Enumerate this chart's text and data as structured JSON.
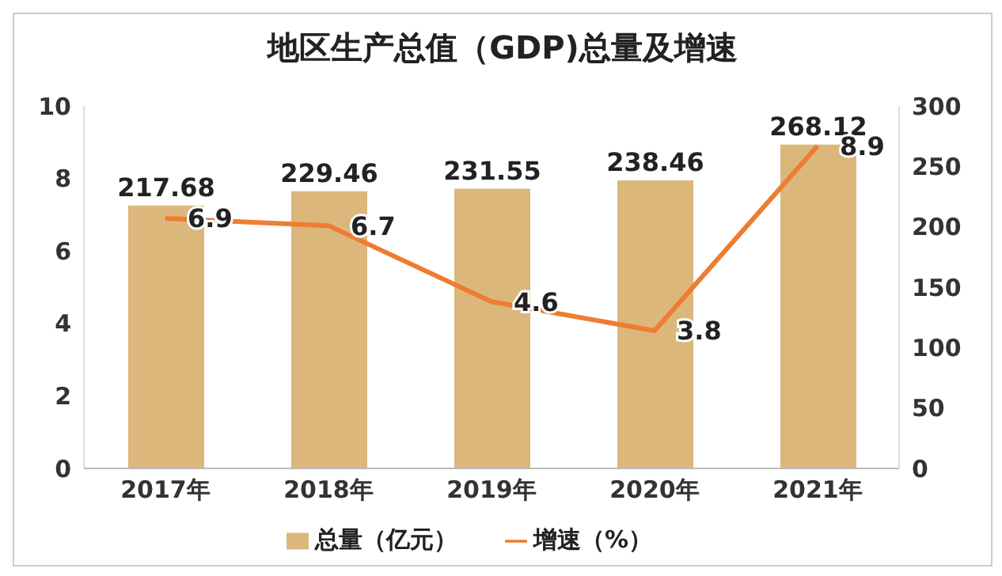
{
  "chart_data": {
    "type": "bar",
    "title": "地区生产总值（GDP)总量及增速",
    "categories": [
      "2017年",
      "2018年",
      "2019年",
      "2020年",
      "2021年"
    ],
    "series": [
      {
        "name": "总量（亿元）",
        "axis": "y2",
        "color": "#dcb77c",
        "values": [
          217.68,
          229.46,
          231.55,
          238.46,
          268.12
        ]
      },
      {
        "name": "增速（%）",
        "type": "line",
        "axis": "y",
        "color": "#ed7d31",
        "values": [
          6.9,
          6.7,
          4.6,
          3.8,
          8.9
        ]
      }
    ],
    "ylim": [
      0,
      10
    ],
    "yticks": [
      0,
      2,
      4,
      6,
      8,
      10
    ],
    "y2lim": [
      0,
      300
    ],
    "y2ticks": [
      0,
      50,
      100,
      150,
      200,
      250,
      300
    ],
    "data_labels": true,
    "grid": false,
    "legend": "bottom",
    "marker": "none",
    "line_style": "solid"
  }
}
